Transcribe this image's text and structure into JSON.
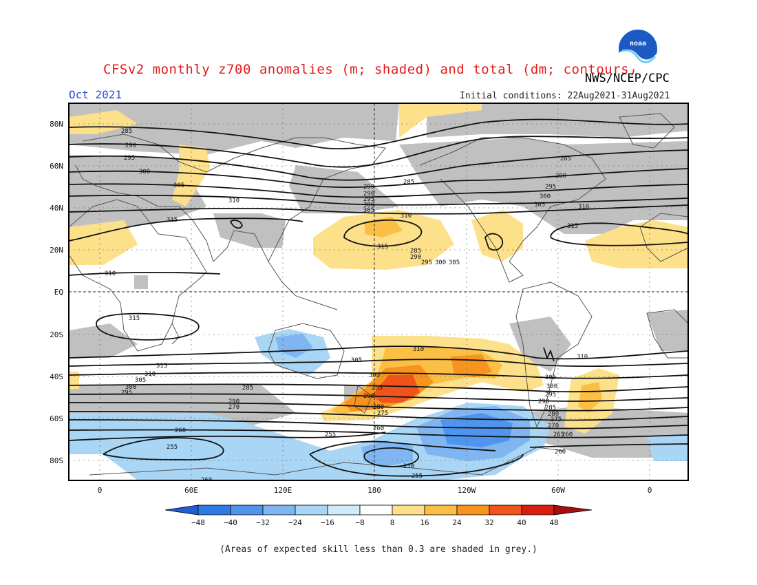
{
  "header": {
    "title": "CFSv2 monthly z700 anomalies (m; shaded) and total (dm; contours)",
    "agency": "NWS/NCEP/CPC",
    "month": "Oct 2021",
    "initial_conditions": "Initial conditions: 22Aug2021-31Aug2021"
  },
  "map": {
    "lat_labels": [
      "80N",
      "60N",
      "40N",
      "20N",
      "EQ",
      "20S",
      "40S",
      "60S",
      "80S"
    ],
    "lon_labels": [
      "0",
      "60E",
      "120E",
      "180",
      "120W",
      "60W",
      "0"
    ],
    "contour_labels": [
      "285",
      "290",
      "295",
      "300",
      "305",
      "310",
      "315",
      "285",
      "290",
      "290",
      "295",
      "300",
      "305",
      "310",
      "310",
      "315",
      "285",
      "290",
      "295",
      "300",
      "305",
      "310",
      "315",
      "315",
      "315",
      "310",
      "305",
      "300",
      "295",
      "290",
      "270",
      "260",
      "255",
      "260",
      "250",
      "255",
      "255",
      "260",
      "285",
      "290",
      "295",
      "300",
      "305",
      "310",
      "305",
      "300",
      "295",
      "290",
      "285",
      "280",
      "275",
      "270",
      "265",
      "260",
      "285",
      "290",
      "295",
      "300",
      "305",
      "310",
      "280",
      "275",
      "260"
    ],
    "colors": {
      "skill_grey": "#c0c0c0",
      "ocean_white": "#ffffff",
      "coast": "#555555"
    }
  },
  "colorbar": {
    "labels": [
      "−48",
      "−40",
      "−32",
      "−24",
      "−16",
      "−8",
      "8",
      "16",
      "24",
      "32",
      "40",
      "48"
    ],
    "colors": [
      "#1f5fd6",
      "#2f7be6",
      "#4f95ee",
      "#7fb6f2",
      "#a9d6f5",
      "#ffffff",
      "#fde08a",
      "#fbbf45",
      "#f7931e",
      "#f0541a",
      "#d81e10",
      "#a80c0c"
    ]
  },
  "footer": {
    "note": "(Areas of expected skill less than 0.3 are shaded in grey.)"
  },
  "logo": {
    "text": "noaa"
  }
}
